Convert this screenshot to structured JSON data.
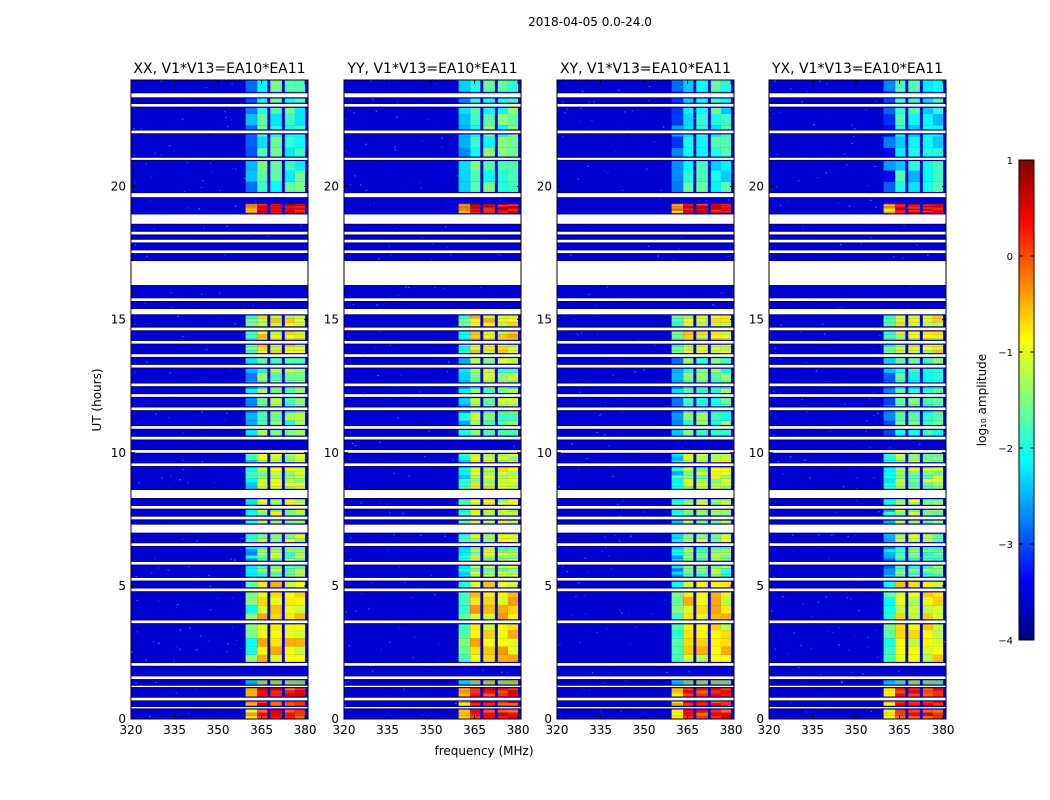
{
  "suptitle": "2018-04-05 0.0-24.0",
  "xlabel": "frequency (MHz)",
  "ylabel": "UT (hours)",
  "colorbar": {
    "label": "log₁₀ amplitude",
    "range": [
      -4,
      1
    ],
    "ticks": [
      -4,
      -3,
      -2,
      -1,
      0,
      1
    ],
    "tick_labels": [
      "−4",
      "−3",
      "−2",
      "−1",
      "0",
      "1"
    ],
    "colormap": "jet"
  },
  "chart_data": {
    "type": "heatmap",
    "x_range": [
      320,
      381
    ],
    "x_ticks": [
      320,
      335,
      350,
      365,
      380
    ],
    "y_range": [
      0,
      24
    ],
    "y_ticks": [
      0,
      5,
      10,
      15,
      20
    ],
    "value_range": [
      -4,
      1
    ],
    "background_value": -3.6,
    "flagged_rows_ut": [
      [
        23.35,
        23.5
      ],
      [
        23.0,
        23.1
      ],
      [
        22.0,
        22.1
      ],
      [
        21.0,
        21.08
      ],
      [
        19.6,
        19.75
      ],
      [
        18.6,
        18.95
      ],
      [
        18.2,
        18.3
      ],
      [
        17.9,
        18.0
      ],
      [
        17.5,
        17.6
      ],
      [
        16.3,
        17.2
      ],
      [
        15.7,
        15.8
      ],
      [
        15.2,
        15.4
      ],
      [
        14.6,
        14.7
      ],
      [
        14.1,
        14.2
      ],
      [
        13.6,
        13.7
      ],
      [
        13.2,
        13.3
      ],
      [
        12.5,
        12.6
      ],
      [
        12.1,
        12.2
      ],
      [
        11.6,
        11.7
      ],
      [
        10.9,
        11.0
      ],
      [
        10.5,
        10.6
      ],
      [
        10.0,
        10.1
      ],
      [
        9.5,
        9.6
      ],
      [
        8.3,
        8.6
      ],
      [
        7.9,
        8.0
      ],
      [
        7.5,
        7.6
      ],
      [
        7.0,
        7.3
      ],
      [
        6.5,
        6.6
      ],
      [
        5.8,
        5.9
      ],
      [
        5.2,
        5.3
      ],
      [
        4.8,
        4.9
      ],
      [
        3.6,
        3.7
      ],
      [
        2.0,
        2.1
      ],
      [
        1.5,
        1.6
      ],
      [
        1.2,
        1.25
      ],
      [
        0.7,
        0.8
      ],
      [
        0.4,
        0.45
      ]
    ],
    "rfi_bands_mhz": [
      [
        359.5,
        363.5
      ],
      [
        363.5,
        367.0
      ],
      [
        368.0,
        372.0
      ],
      [
        373.0,
        376.5
      ],
      [
        376.5,
        380.0
      ]
    ],
    "rfi_time_segments": [
      {
        "ut": [
          0.0,
          1.2
        ],
        "level": 0.2
      },
      {
        "ut": [
          1.3,
          1.5
        ],
        "level": -1.2
      },
      {
        "ut": [
          2.1,
          5.2
        ],
        "level": -0.8
      },
      {
        "ut": [
          5.3,
          6.5
        ],
        "level": -1.5
      },
      {
        "ut": [
          6.6,
          8.3
        ],
        "level": -1.2
      },
      {
        "ut": [
          8.6,
          10.0
        ],
        "level": -1.2
      },
      {
        "ut": [
          10.6,
          13.6
        ],
        "level": -1.6
      },
      {
        "ut": [
          13.7,
          15.2
        ],
        "level": -0.9
      },
      {
        "ut": [
          18.9,
          19.35
        ],
        "level": 0.4
      },
      {
        "ut": [
          19.75,
          24.0
        ],
        "level": -1.9
      }
    ],
    "panels": [
      {
        "title": "XX, V1*V13=EA10*EA11",
        "rfi_scale": 1.0
      },
      {
        "title": "YY, V1*V13=EA10*EA11",
        "rfi_scale": 1.1
      },
      {
        "title": "XY, V1*V13=EA10*EA11",
        "rfi_scale": 0.95
      },
      {
        "title": "YX, V1*V13=EA10*EA11",
        "rfi_scale": 0.9
      }
    ]
  }
}
